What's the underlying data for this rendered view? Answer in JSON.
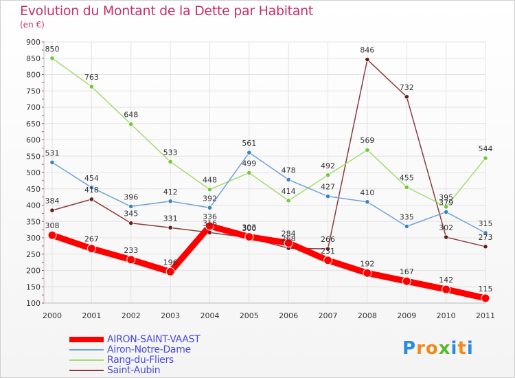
{
  "title": "Evolution du Montant de la Dette par Habitant",
  "subtitle": "(en €)",
  "logo": {
    "letters": [
      "P",
      "r",
      "o",
      "x",
      "i",
      "t",
      "i"
    ],
    "colors": [
      "#2b8be0",
      "#f08a1c",
      "#f08a1c",
      "#58b82c",
      "#2b8be0",
      "#f08a1c",
      "#2b8be0"
    ]
  },
  "chart_data": {
    "type": "line",
    "x": [
      "2000",
      "2001",
      "2002",
      "2003",
      "2004",
      "2005",
      "2006",
      "2007",
      "2008",
      "2009",
      "2010",
      "2011"
    ],
    "ylim": [
      100,
      900
    ],
    "yticks": [
      100,
      150,
      200,
      250,
      300,
      350,
      400,
      450,
      500,
      550,
      600,
      650,
      700,
      750,
      800,
      850,
      900
    ],
    "grid": true,
    "legend_position": "bottom-left",
    "series": [
      {
        "name": "AIRON-SAINT-VAAST",
        "color": "#ff0000",
        "point_color": "#ff0000",
        "values": [
          308,
          267,
          233,
          196,
          336,
          303,
          284,
          231,
          192,
          167,
          142,
          115
        ]
      },
      {
        "name": "Airon-Notre-Dame",
        "color": "#6fa2d6",
        "point_color": "#3b82c4",
        "values": [
          531,
          454,
          396,
          412,
          392,
          561,
          478,
          427,
          410,
          335,
          379,
          315
        ]
      },
      {
        "name": "Rang-du-Fliers",
        "color": "#a3dc70",
        "point_color": "#72c83a",
        "values": [
          850,
          763,
          648,
          533,
          448,
          499,
          414,
          492,
          569,
          455,
          395,
          544
        ]
      },
      {
        "name": "Saint-Aubin",
        "color": "#8a3a3a",
        "point_color": "#6b1a1a",
        "values": [
          384,
          418,
          345,
          331,
          316,
          300,
          268,
          266,
          846,
          732,
          302,
          273
        ]
      }
    ]
  }
}
